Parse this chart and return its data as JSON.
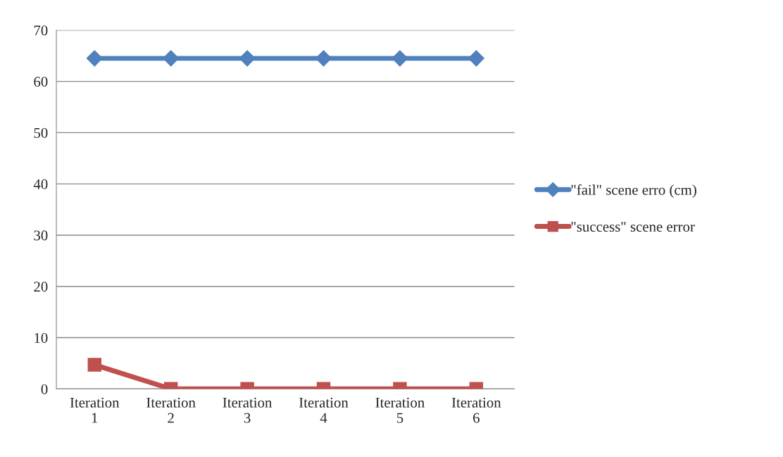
{
  "chart_data": {
    "type": "line",
    "categories": [
      "Iteration\n1",
      "Iteration\n2",
      "Iteration\n3",
      "Iteration\n4",
      "Iteration\n5",
      "Iteration\n6"
    ],
    "series": [
      {
        "name": "\"fail\" scene erro (cm)",
        "color": "#4f81bd",
        "marker": "diamond",
        "values": [
          64.5,
          64.5,
          64.5,
          64.5,
          64.5,
          64.5
        ]
      },
      {
        "name": "\"success\" scene error",
        "color": "#c0504d",
        "marker": "square",
        "values": [
          4.7,
          0,
          0,
          0,
          0,
          0
        ]
      }
    ],
    "ylim": [
      0,
      70
    ],
    "yticks": [
      0,
      10,
      20,
      30,
      40,
      50,
      60,
      70
    ],
    "grid": "y",
    "legend": "right"
  }
}
